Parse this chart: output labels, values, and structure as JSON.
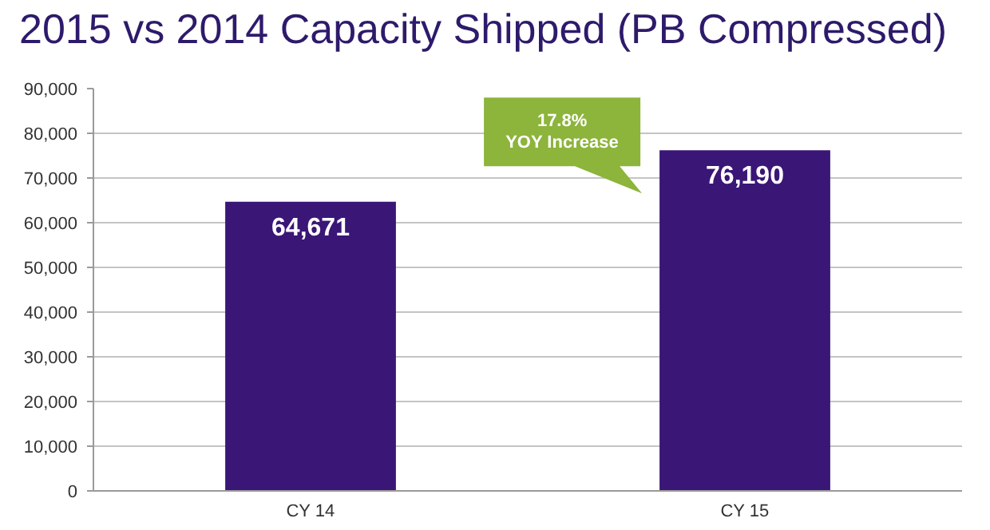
{
  "chart_data": {
    "type": "bar",
    "title": "2015 vs 2014 Capacity Shipped (PB Compressed)",
    "categories": [
      "CY 14",
      "CY 15"
    ],
    "values": [
      64671,
      76190
    ],
    "value_labels": [
      "64,671",
      "76,190"
    ],
    "color": "#3a1677",
    "ylim": [
      0,
      90000
    ],
    "yticks": [
      0,
      {
        "value": 10000,
        "label": "10,000"
      },
      {
        "value": 20000,
        "label": "20,000"
      },
      {
        "value": 30000,
        "label": "30,000"
      },
      {
        "value": 40000,
        "label": "40,000"
      },
      {
        "value": 50000,
        "label": "50,000"
      },
      {
        "value": 60000,
        "label": "60,000"
      },
      {
        "value": 70000,
        "label": "70,000"
      },
      {
        "value": 80000,
        "label": "80,000"
      },
      {
        "value": 90000,
        "label": "90,000"
      }
    ],
    "grid": "y",
    "annotations": [
      "17.8%\nYOY Increase"
    ]
  }
}
